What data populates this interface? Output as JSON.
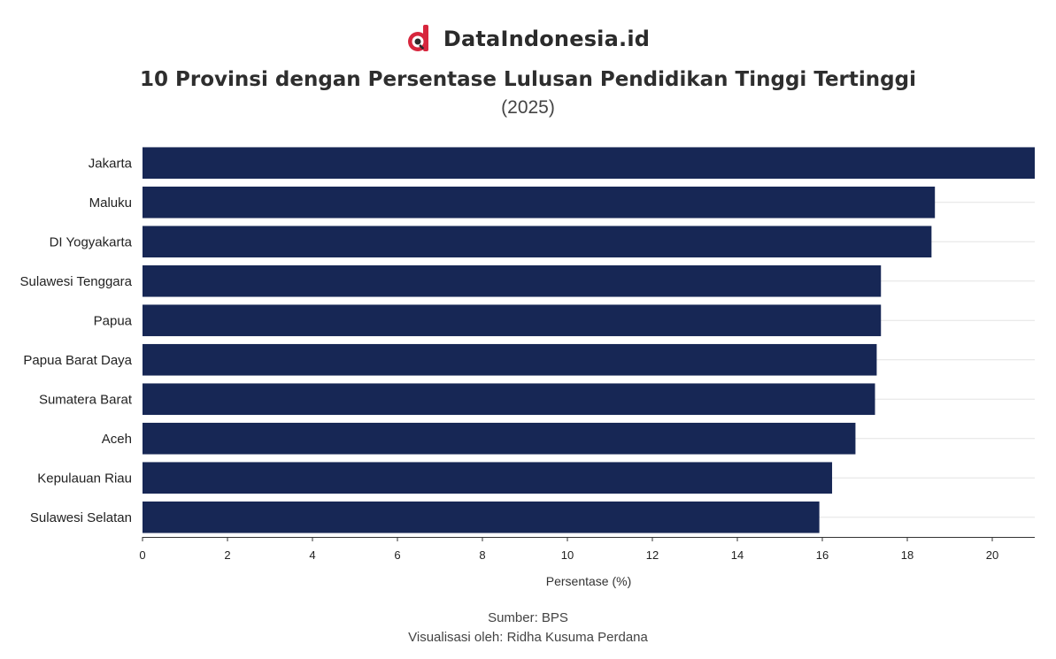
{
  "brand": {
    "name": "DataIndonesia.id",
    "accent": "#d7263d",
    "dark": "#2b2b2b"
  },
  "header": {
    "title": "10 Provinsi dengan Persentase Lulusan Pendidikan Tinggi Tertinggi",
    "subtitle": "(2025)"
  },
  "footer": {
    "source": "Sumber: BPS",
    "credit": "Visualisasi oleh: Ridha Kusuma Perdana"
  },
  "chart_data": {
    "type": "bar",
    "orientation": "horizontal",
    "categories": [
      "Jakarta",
      "Maluku",
      "DI Yogyakarta",
      "Sulawesi Tenggara",
      "Papua",
      "Papua Barat Daya",
      "Sumatera Barat",
      "Aceh",
      "Kepulauan Riau",
      "Sulawesi Selatan"
    ],
    "values": [
      21.0,
      18.65,
      18.57,
      17.38,
      17.38,
      17.28,
      17.24,
      16.78,
      16.23,
      15.93
    ],
    "xlabel": "Persentase (%)",
    "ylabel": "",
    "xlim": [
      0,
      21
    ],
    "xticks": [
      0,
      2,
      4,
      6,
      8,
      10,
      12,
      14,
      16,
      18,
      20
    ],
    "bar_color": "#172755",
    "grid": true
  }
}
